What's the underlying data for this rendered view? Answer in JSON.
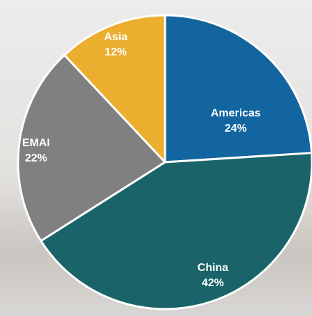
{
  "chart_data": {
    "type": "pie",
    "categories": [
      "Americas",
      "China",
      "EMAI",
      "Asia"
    ],
    "values": [
      24,
      42,
      22,
      12
    ],
    "value_labels": [
      "24%",
      "42%",
      "22%",
      "12%"
    ],
    "colors": [
      "#12659f",
      "#1a6469",
      "#808080",
      "#ebae2f"
    ]
  }
}
